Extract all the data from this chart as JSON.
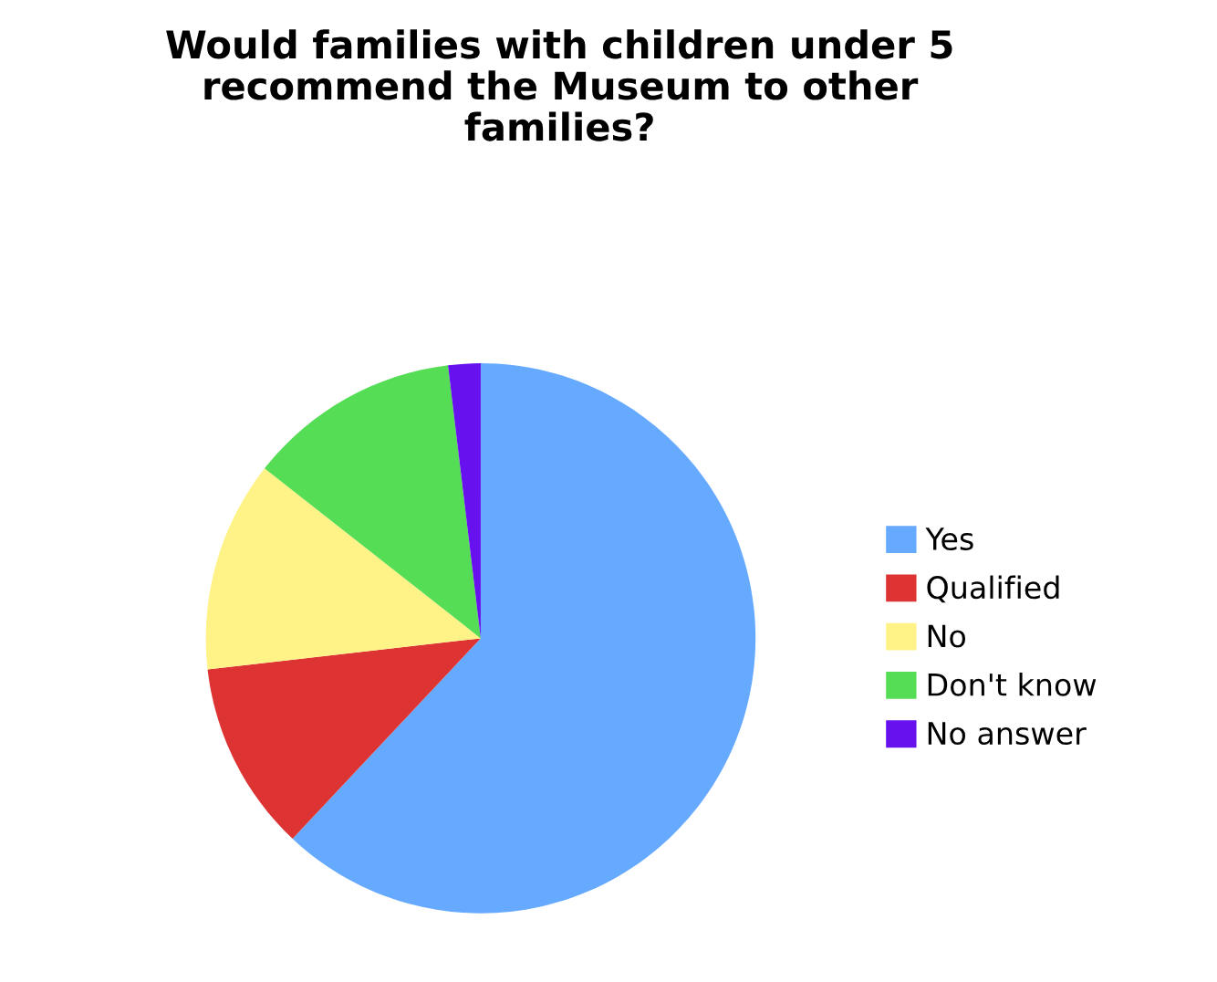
{
  "chart_data": {
    "type": "pie",
    "title": "Would families with children under 5\nrecommend the Museum to other\nfamilies?",
    "categories": [
      "Yes",
      "Qualified",
      "No",
      "Don't know",
      "No answer"
    ],
    "values": [
      62,
      11.2,
      12.4,
      12.5,
      1.9
    ],
    "colors": [
      "#66aaff",
      "#dd3333",
      "#fff388",
      "#55dd55",
      "#6611ee"
    ],
    "legend": "right"
  }
}
